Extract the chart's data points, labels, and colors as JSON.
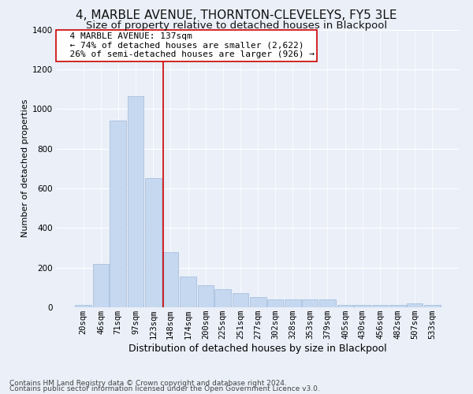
{
  "title1": "4, MARBLE AVENUE, THORNTON-CLEVELEYS, FY5 3LE",
  "title2": "Size of property relative to detached houses in Blackpool",
  "xlabel": "Distribution of detached houses by size in Blackpool",
  "ylabel": "Number of detached properties",
  "footnote1": "Contains HM Land Registry data © Crown copyright and database right 2024.",
  "footnote2": "Contains public sector information licensed under the Open Government Licence v3.0.",
  "annotation_title": "4 MARBLE AVENUE: 137sqm",
  "annotation_line1": "← 74% of detached houses are smaller (2,622)",
  "annotation_line2": "26% of semi-detached houses are larger (926) →",
  "property_size": 137,
  "bin_starts": [
    20,
    46,
    71,
    97,
    123,
    148,
    174,
    200,
    225,
    251,
    277,
    302,
    328,
    353,
    379,
    405,
    430,
    456,
    482,
    507,
    533
  ],
  "categories": [
    "20sqm",
    "46sqm",
    "71sqm",
    "97sqm",
    "123sqm",
    "148sqm",
    "174sqm",
    "200sqm",
    "225sqm",
    "251sqm",
    "277sqm",
    "302sqm",
    "328sqm",
    "353sqm",
    "379sqm",
    "405sqm",
    "430sqm",
    "456sqm",
    "482sqm",
    "507sqm",
    "533sqm"
  ],
  "values": [
    10,
    220,
    940,
    1065,
    650,
    280,
    155,
    110,
    90,
    70,
    50,
    40,
    40,
    40,
    40,
    10,
    10,
    10,
    10,
    20,
    10
  ],
  "bar_color": "#c5d8f0",
  "bar_edgecolor": "#a0b8d8",
  "vline_color": "#cc0000",
  "vline_x": 137,
  "ylim": [
    0,
    1400
  ],
  "yticks": [
    0,
    200,
    400,
    600,
    800,
    1000,
    1200,
    1400
  ],
  "bg_color": "#eaeff8",
  "plot_bg_color": "#eaeff8",
  "grid_color": "#ffffff",
  "annotation_box_color": "#ffffff",
  "annotation_border_color": "#cc0000",
  "title1_fontsize": 11,
  "title2_fontsize": 9.5,
  "xlabel_fontsize": 9,
  "ylabel_fontsize": 8,
  "tick_fontsize": 7.5,
  "annotation_fontsize": 8,
  "footnote_fontsize": 6.5
}
